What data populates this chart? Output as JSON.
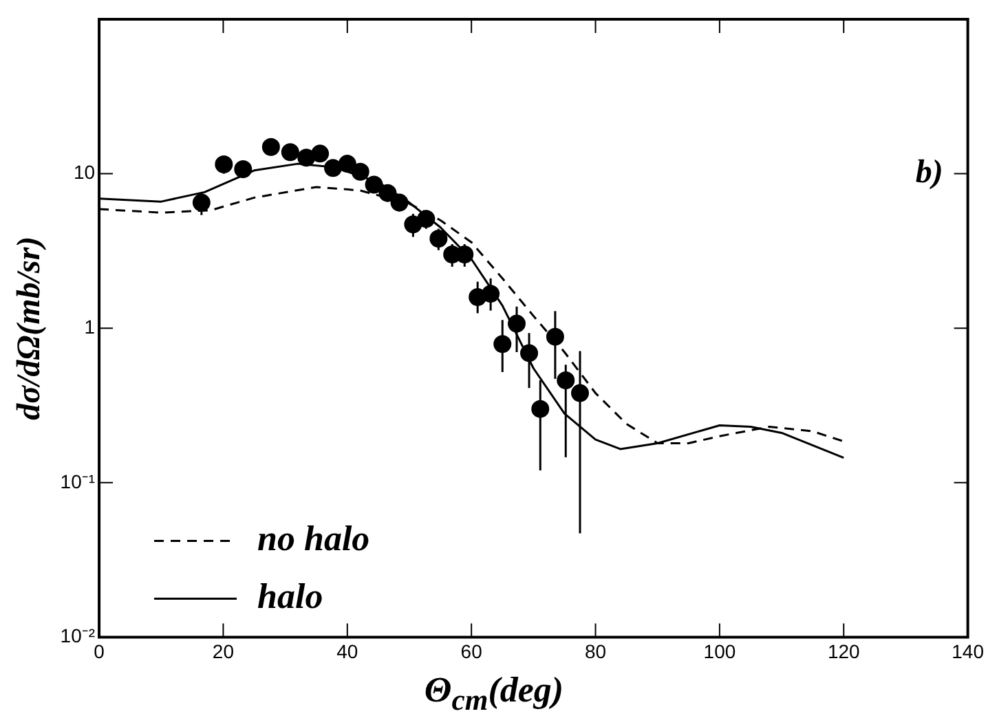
{
  "chart_data": {
    "type": "scatter",
    "xlabel": "Θ$_{cm}$(deg)",
    "ylabel": "dσ/dΩ(mb/sr)",
    "log": "y",
    "grid": false,
    "legend": "bottom left",
    "xlim": [
      0,
      140
    ],
    "xticks": [
      0,
      20,
      40,
      60,
      80,
      100,
      120,
      140
    ],
    "ylim": [
      0.01,
      100
    ],
    "yticks": [
      {
        "value": 0.01,
        "label": "10⁻²"
      },
      {
        "value": 0.1,
        "label": "10⁻¹"
      },
      1,
      10,
      {
        "value": 100,
        "label": null
      }
    ],
    "annotations": [
      "b)"
    ],
    "series": [
      {
        "color": "#000000",
        "marker": "circle",
        "x": [
          16.5,
          20.1,
          23.2,
          27.7,
          30.8,
          33.4,
          35.6,
          37.7,
          40.0,
          42.1,
          44.3,
          46.5,
          48.4,
          50.6,
          52.7,
          54.7,
          56.9,
          58.9,
          61.0,
          63.1,
          65.0,
          67.3,
          69.3,
          71.1,
          73.5,
          75.2,
          77.5
        ],
        "values": [
          6.5,
          11.5,
          10.7,
          14.9,
          13.8,
          12.7,
          13.5,
          10.9,
          11.6,
          10.3,
          8.5,
          7.5,
          6.5,
          4.7,
          5.1,
          3.8,
          3.0,
          3.0,
          1.59,
          1.67,
          0.79,
          1.07,
          0.69,
          0.3,
          0.88,
          0.46,
          0.38
        ],
        "errors": [
          [
            5.4,
            7.6
          ],
          [
            10.0,
            13.0
          ],
          [
            9.4,
            12.0
          ],
          [
            13.3,
            16.5
          ],
          [
            12.2,
            15.4
          ],
          [
            11.2,
            14.2
          ],
          [
            12.0,
            15.0
          ],
          [
            9.6,
            12.2
          ],
          [
            10.3,
            12.9
          ],
          [
            9.1,
            11.5
          ],
          [
            7.5,
            9.5
          ],
          [
            6.6,
            8.4
          ],
          [
            5.7,
            7.3
          ],
          [
            3.9,
            5.5
          ],
          [
            4.4,
            5.8
          ],
          [
            3.2,
            4.4
          ],
          [
            2.5,
            3.5
          ],
          [
            2.5,
            3.5
          ],
          [
            1.25,
            2.0
          ],
          [
            1.3,
            2.1
          ],
          [
            0.52,
            1.13
          ],
          [
            0.7,
            1.38
          ],
          [
            0.41,
            0.93
          ],
          [
            0.12,
            0.46
          ],
          [
            0.47,
            1.29
          ],
          [
            0.146,
            0.58
          ],
          [
            0.047,
            0.71
          ]
        ]
      },
      {
        "type": "line",
        "name": "no halo",
        "color": "#000000",
        "line_style": "dashed",
        "x": [
          0,
          10,
          18,
          25,
          35,
          42,
          50,
          55,
          60,
          65,
          70,
          75,
          80,
          85,
          90,
          95,
          100,
          108,
          115,
          120
        ],
        "values": [
          5.9,
          5.6,
          5.8,
          7.0,
          8.2,
          7.8,
          6.4,
          5.0,
          3.6,
          2.1,
          1.2,
          0.7,
          0.38,
          0.24,
          0.18,
          0.18,
          0.2,
          0.23,
          0.215,
          0.185
        ]
      },
      {
        "type": "line",
        "name": "halo",
        "color": "#000000",
        "line_style": "solid",
        "x": [
          0,
          10,
          17,
          25,
          32,
          38,
          45,
          50,
          55,
          60,
          65,
          70,
          75,
          80,
          84,
          90,
          100,
          105,
          110,
          120
        ],
        "values": [
          6.9,
          6.6,
          7.6,
          10.5,
          11.6,
          11.0,
          8.8,
          6.5,
          4.5,
          2.8,
          1.4,
          0.55,
          0.28,
          0.19,
          0.165,
          0.18,
          0.235,
          0.23,
          0.21,
          0.145
        ]
      }
    ]
  }
}
